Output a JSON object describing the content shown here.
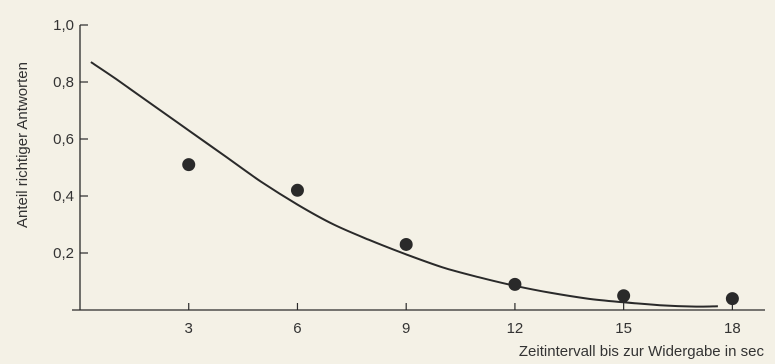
{
  "chart_data": {
    "type": "scatter",
    "xlabel": "Zeitintervall bis zur Widergabe in sec",
    "ylabel": "Anteil richtiger Antworten",
    "x_ticks": [
      "3",
      "6",
      "9",
      "12",
      "15",
      "18"
    ],
    "y_ticks": [
      "0,2",
      "0,4",
      "0,6",
      "0,8",
      "1,0"
    ],
    "xlim": [
      0,
      18.9
    ],
    "ylim": [
      0,
      1.0
    ],
    "grid": false,
    "series": [
      {
        "kind": "points",
        "x": [
          3,
          6,
          9,
          12,
          15,
          18
        ],
        "y": [
          0.51,
          0.42,
          0.23,
          0.09,
          0.05,
          0.04
        ]
      },
      {
        "kind": "curve",
        "x": [
          0.3,
          1,
          2,
          3,
          4,
          5,
          6,
          7,
          8,
          9,
          10,
          11,
          12,
          13,
          14,
          15,
          16,
          17,
          17.6
        ],
        "y": [
          0.87,
          0.81,
          0.72,
          0.63,
          0.54,
          0.45,
          0.37,
          0.3,
          0.245,
          0.195,
          0.15,
          0.115,
          0.085,
          0.06,
          0.04,
          0.027,
          0.017,
          0.012,
          0.013
        ]
      }
    ],
    "colors": {
      "ink": "#2a2a2a",
      "background": "#f4f1e6"
    }
  }
}
